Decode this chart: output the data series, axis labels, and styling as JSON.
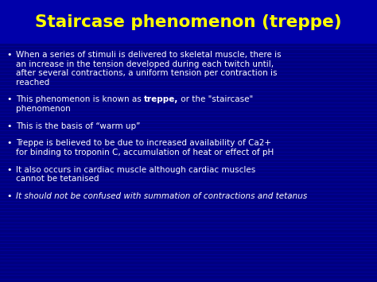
{
  "title": "Staircase phenomenon (treppe)",
  "title_color": "#FFFF00",
  "bg_color": "#000080",
  "stripe_color": "#0000AA",
  "title_bg_color": "#0000AA",
  "text_color": "#FFFFFF",
  "bullet_color": "#FFFFFF",
  "title_fontsize": 15.5,
  "body_fontsize": 7.5,
  "bullets": [
    {
      "lines": [
        "When a series of stimuli is delivered to skeletal muscle, there is",
        "an increase in the tension developed during each twitch until,",
        "after several contractions, a uniform tension per contraction is",
        "reached"
      ],
      "italic": false,
      "segments": null
    },
    {
      "lines": [
        "This phenomenon is known as treppe, or the \"staircase\"",
        "phenomenon"
      ],
      "italic": false,
      "segments": [
        {
          "text": "This phenomenon is known as ",
          "bold": false
        },
        {
          "text": "treppe,",
          "bold": true
        },
        {
          "text": " or the \"staircase\"",
          "bold": false
        }
      ]
    },
    {
      "lines": [
        "This is the basis of “warm up”"
      ],
      "italic": false,
      "segments": null
    },
    {
      "lines": [
        "Treppe is believed to be due to increased availability of Ca2+",
        "for binding to troponin C, accumulation of heat or effect of pH"
      ],
      "italic": false,
      "segments": null
    },
    {
      "lines": [
        "It also occurs in cardiac muscle although cardiac muscles",
        "cannot be tetanised"
      ],
      "italic": false,
      "segments": null
    },
    {
      "lines": [
        "It should not be confused with summation of contractions and tetanus"
      ],
      "italic": true,
      "segments": null
    }
  ]
}
